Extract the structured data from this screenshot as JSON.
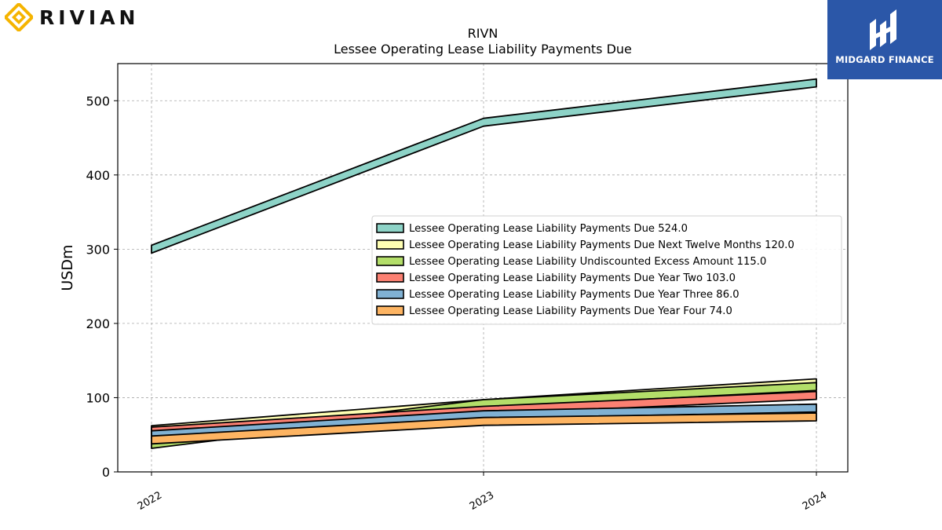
{
  "brand": {
    "wordmark": "RIVIAN",
    "accent": "#f5b400"
  },
  "partner": {
    "name": "MIDGARD FINANCE",
    "bg": "#2b57a8"
  },
  "chart_data": {
    "type": "area",
    "title": "RIVN",
    "subtitle": "Lessee Operating Lease Liability Payments Due",
    "xlabel": "",
    "ylabel": "USDm",
    "x": [
      "2022",
      "2023",
      "2024"
    ],
    "ylim": [
      0,
      550
    ],
    "yticks": [
      0,
      100,
      200,
      300,
      400,
      500
    ],
    "grid": true,
    "legend_position": "center-right",
    "series": [
      {
        "name": "Lessee Operating Lease Liability Payments Due",
        "legend_value": "524.0",
        "values": [
          300,
          471,
          524
        ],
        "color": "#8dd3c7"
      },
      {
        "name": "Lessee Operating Lease Liability Payments Due Next Twelve Months",
        "legend_value": "120.0",
        "values": [
          57,
          92,
          120
        ],
        "color": "#ffffb3"
      },
      {
        "name": "Lessee Operating Lease Liability Undiscounted Excess Amount",
        "legend_value": "115.0",
        "values": [
          37,
          92,
          115
        ],
        "color": "#b3de69"
      },
      {
        "name": "Lessee Operating Lease Liability Payments Due Year Two",
        "legend_value": "103.0",
        "values": [
          55,
          83,
          103
        ],
        "color": "#fb8072"
      },
      {
        "name": "Lessee Operating Lease Liability Payments Due Year Three",
        "legend_value": "86.0",
        "values": [
          50,
          77,
          86
        ],
        "color": "#80b1d3"
      },
      {
        "name": "Lessee Operating Lease Liability Payments Due Year Four",
        "legend_value": "74.0",
        "values": [
          43,
          68,
          74
        ],
        "color": "#fdb462"
      }
    ]
  }
}
